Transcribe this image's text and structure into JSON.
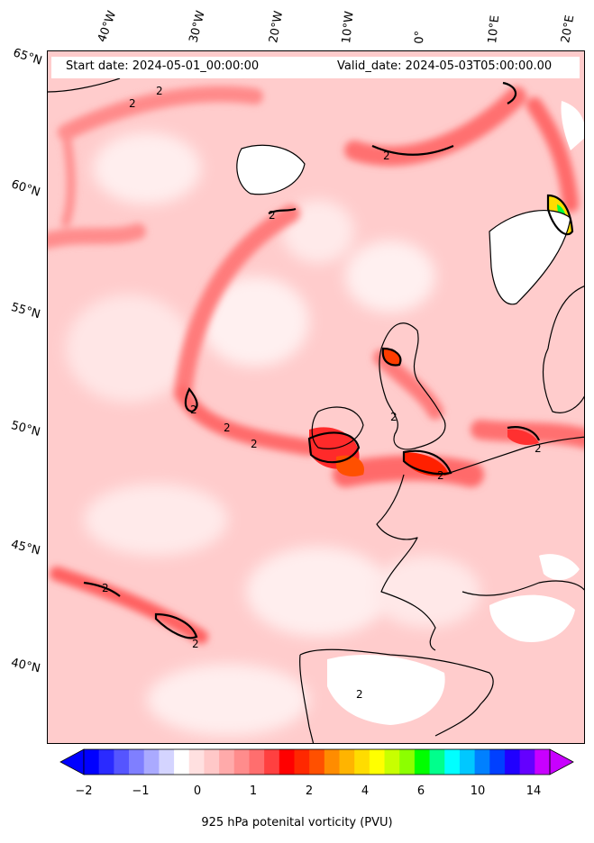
{
  "header": {
    "start_date": "Start date: 2024-05-01_00:00:00",
    "valid_date": "Valid_date: 2024-05-03T05:00:00.00"
  },
  "lat_labels": [
    "65°N",
    "60°N",
    "55°N",
    "50°N",
    "45°N",
    "40°N"
  ],
  "lon_labels": [
    "40°W",
    "30°W",
    "20°W",
    "10°W",
    "0°",
    "10°E",
    "20°E"
  ],
  "contour_label": "2",
  "colorbar": {
    "tick_labels": [
      "−2",
      "−1",
      "0",
      "1",
      "2",
      "4",
      "6",
      "10",
      "14"
    ],
    "label": "925 hPa potenital vorticity (PVU)",
    "colors": [
      "#0000ff",
      "#2a2aff",
      "#5555ff",
      "#7f7fff",
      "#aaaaff",
      "#d4d4ff",
      "#ffffff",
      "#ffe0e0",
      "#ffc8c8",
      "#ffaaaa",
      "#ff8c8c",
      "#ff6e6e",
      "#ff4040",
      "#ff0000",
      "#ff2800",
      "#ff5000",
      "#ff8c00",
      "#ffb400",
      "#ffdc00",
      "#ffff00",
      "#c8ff00",
      "#8cff00",
      "#00ff00",
      "#00ff8c",
      "#00ffff",
      "#00c8ff",
      "#0080ff",
      "#0040ff",
      "#2000ff",
      "#6400ff",
      "#c800ff"
    ]
  },
  "map_data": {
    "projection": "stereographic",
    "lat_range": [
      36,
      66
    ],
    "lon_range": [
      -45,
      22
    ],
    "field": "925 hPa potential vorticity",
    "units": "PVU",
    "contour_level": 2
  }
}
